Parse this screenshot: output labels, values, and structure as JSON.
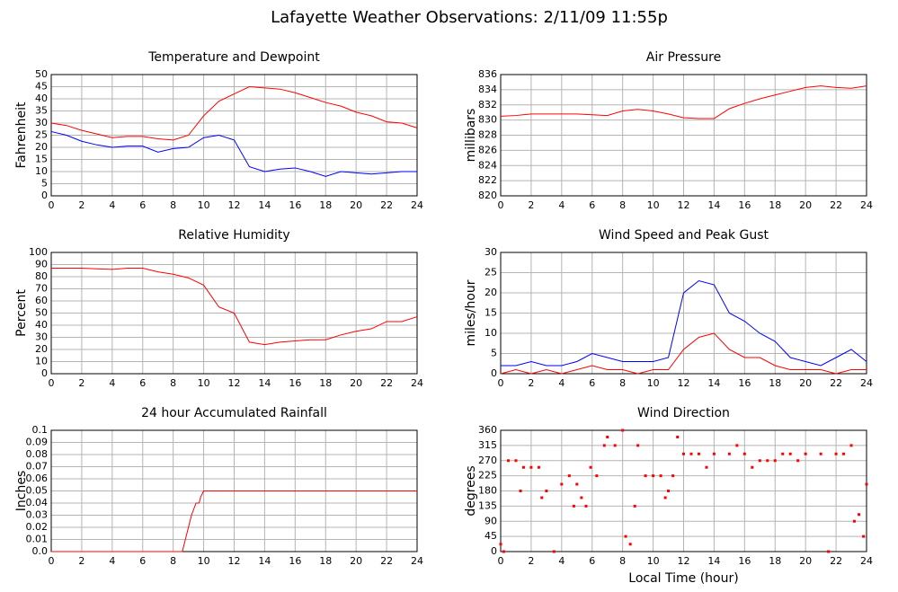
{
  "title": "Lafayette Weather Observations: 2/11/09 11:55p",
  "chart_data": [
    {
      "type": "line",
      "title": "Temperature and Dewpoint",
      "ylabel": "Fahrenheit",
      "x": [
        0,
        1,
        2,
        3,
        4,
        5,
        6,
        7,
        8,
        9,
        10,
        11,
        12,
        13,
        14,
        15,
        16,
        17,
        18,
        19,
        20,
        21,
        22,
        23,
        24
      ],
      "series": [
        {
          "name": "Temperature",
          "color": "#ff0000",
          "values": [
            30,
            29,
            27,
            25.5,
            24,
            24.5,
            24.5,
            23.5,
            23,
            25,
            33,
            39,
            42,
            45,
            44.5,
            44,
            42.5,
            40.5,
            38.5,
            37,
            34.5,
            33,
            30.5,
            30,
            28
          ]
        },
        {
          "name": "Dewpoint",
          "color": "#0000ff",
          "values": [
            26.5,
            25,
            22.5,
            21,
            20,
            20.5,
            20.5,
            18,
            19.5,
            20,
            24,
            25,
            23,
            12,
            10,
            11,
            11.5,
            10,
            8,
            10,
            9.5,
            9,
            9.5,
            10,
            10
          ]
        }
      ],
      "xlim": [
        0,
        24
      ],
      "xticks": [
        0,
        2,
        4,
        6,
        8,
        10,
        12,
        14,
        16,
        18,
        20,
        22,
        24
      ],
      "ylim": [
        0,
        50
      ],
      "yticks": [
        0,
        5,
        10,
        15,
        20,
        25,
        30,
        35,
        40,
        45,
        50
      ],
      "grid": true
    },
    {
      "type": "line",
      "title": "Air Pressure",
      "ylabel": "millibars",
      "x": [
        0,
        1,
        2,
        3,
        4,
        5,
        6,
        7,
        8,
        9,
        10,
        11,
        12,
        13,
        14,
        15,
        16,
        17,
        18,
        19,
        20,
        21,
        22,
        23,
        24
      ],
      "series": [
        {
          "name": "Pressure",
          "color": "#ff0000",
          "values": [
            830.5,
            830.6,
            830.8,
            830.8,
            830.8,
            830.8,
            830.7,
            830.6,
            831.2,
            831.4,
            831.2,
            830.8,
            830.3,
            830.2,
            830.2,
            831.5,
            832.2,
            832.8,
            833.3,
            833.8,
            834.3,
            834.5,
            834.3,
            834.2,
            834.5
          ]
        }
      ],
      "xlim": [
        0,
        24
      ],
      "xticks": [
        0,
        2,
        4,
        6,
        8,
        10,
        12,
        14,
        16,
        18,
        20,
        22,
        24
      ],
      "ylim": [
        820,
        836
      ],
      "yticks": [
        820,
        822,
        824,
        826,
        828,
        830,
        832,
        834,
        836
      ],
      "grid": true
    },
    {
      "type": "line",
      "title": "Relative Humidity",
      "ylabel": "Percent",
      "x": [
        0,
        1,
        2,
        3,
        4,
        5,
        6,
        7,
        8,
        9,
        10,
        11,
        12,
        13,
        14,
        15,
        16,
        17,
        18,
        19,
        20,
        21,
        22,
        23,
        24
      ],
      "series": [
        {
          "name": "Humidity",
          "color": "#ff0000",
          "values": [
            87,
            87,
            87,
            86.5,
            86,
            87,
            87,
            84,
            82,
            79,
            73,
            55,
            50,
            26,
            24,
            26,
            27,
            28,
            28,
            32,
            35,
            37,
            43,
            43,
            47
          ]
        }
      ],
      "xlim": [
        0,
        24
      ],
      "xticks": [
        0,
        2,
        4,
        6,
        8,
        10,
        12,
        14,
        16,
        18,
        20,
        22,
        24
      ],
      "ylim": [
        0,
        100
      ],
      "yticks": [
        0,
        10,
        20,
        30,
        40,
        50,
        60,
        70,
        80,
        90,
        100
      ],
      "grid": true
    },
    {
      "type": "line",
      "title": "Wind Speed and Peak Gust",
      "ylabel": "miles/hour",
      "x": [
        0,
        1,
        2,
        3,
        4,
        5,
        6,
        7,
        8,
        9,
        10,
        11,
        12,
        13,
        14,
        15,
        16,
        17,
        18,
        19,
        20,
        21,
        22,
        23,
        24
      ],
      "series": [
        {
          "name": "Peak Gust",
          "color": "#0000ff",
          "values": [
            2,
            2,
            3,
            2,
            2,
            3,
            5,
            4,
            3,
            3,
            3,
            4,
            20,
            23,
            22,
            15,
            13,
            10,
            8,
            4,
            3,
            2,
            4,
            6,
            3
          ]
        },
        {
          "name": "Wind Speed",
          "color": "#ff0000",
          "values": [
            0,
            1,
            0,
            1,
            0,
            1,
            2,
            1,
            1,
            0,
            1,
            1,
            6,
            9,
            10,
            6,
            4,
            4,
            2,
            1,
            1,
            1,
            0,
            1,
            1
          ]
        }
      ],
      "xlim": [
        0,
        24
      ],
      "xticks": [
        0,
        2,
        4,
        6,
        8,
        10,
        12,
        14,
        16,
        18,
        20,
        22,
        24
      ],
      "ylim": [
        0,
        30
      ],
      "yticks": [
        0,
        5,
        10,
        15,
        20,
        25,
        30
      ],
      "grid": true
    },
    {
      "type": "line",
      "title": "24 hour Accumulated Rainfall",
      "ylabel": "Inches",
      "x": [
        0,
        8.6,
        8.8,
        9,
        9.2,
        9.5,
        9.7,
        9.8,
        10,
        24
      ],
      "series": [
        {
          "name": "Rainfall",
          "color": "#ff0000",
          "values": [
            0,
            0,
            0.01,
            0.02,
            0.03,
            0.04,
            0.04,
            0.045,
            0.05,
            0.05
          ]
        }
      ],
      "xlim": [
        0,
        24
      ],
      "xticks": [
        0,
        2,
        4,
        6,
        8,
        10,
        12,
        14,
        16,
        18,
        20,
        22,
        24
      ],
      "ylim": [
        0,
        0.1
      ],
      "yticks": [
        {
          "value": 0,
          "label": "0.0"
        },
        0.01,
        0.02,
        0.03,
        0.04,
        0.05,
        0.06,
        0.07,
        0.08,
        0.09,
        0.1
      ],
      "grid": true
    },
    {
      "type": "scatter",
      "title": "Wind Direction",
      "ylabel": "degrees",
      "xlabel": "Local Time (hour)",
      "x": [
        0,
        0.2,
        0.5,
        1,
        1.3,
        1.5,
        2,
        2.5,
        2.7,
        3,
        3.5,
        4,
        4.5,
        4.8,
        5,
        5.3,
        5.6,
        5.9,
        6.3,
        6.8,
        7,
        7.5,
        8,
        8.2,
        8.5,
        8.8,
        9,
        9.5,
        10,
        10.5,
        10.8,
        11,
        11.3,
        11.6,
        12,
        12.5,
        13,
        13.5,
        14,
        15,
        15.5,
        16,
        16.5,
        17,
        17.5,
        18,
        18.5,
        19,
        19.5,
        20,
        21,
        21.5,
        22,
        22.5,
        23,
        23.2,
        23.5,
        23.8,
        24
      ],
      "series": [
        {
          "name": "Direction",
          "color": "#ff0000",
          "values": [
            22,
            0,
            270,
            270,
            180,
            250,
            250,
            250,
            160,
            180,
            0,
            200,
            225,
            135,
            200,
            160,
            135,
            250,
            225,
            315,
            340,
            315,
            360,
            45,
            22,
            135,
            315,
            225,
            225,
            225,
            160,
            180,
            225,
            340,
            290,
            290,
            290,
            250,
            290,
            290,
            315,
            290,
            250,
            270,
            270,
            270,
            290,
            290,
            270,
            290,
            290,
            0,
            290,
            290,
            315,
            90,
            110,
            45,
            200
          ]
        }
      ],
      "xlim": [
        0,
        24
      ],
      "xticks": [
        0,
        2,
        4,
        6,
        8,
        10,
        12,
        14,
        16,
        18,
        20,
        22,
        24
      ],
      "ylim": [
        0,
        360
      ],
      "yticks": [
        0,
        45,
        90,
        135,
        180,
        225,
        270,
        315,
        360
      ],
      "grid": true
    }
  ]
}
